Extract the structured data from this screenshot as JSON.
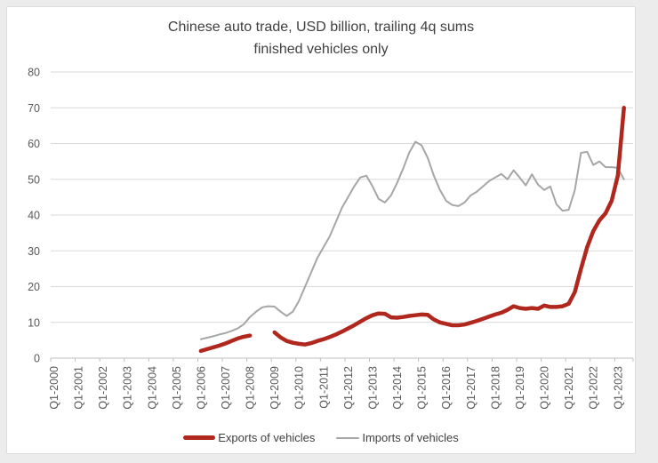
{
  "window": {
    "background_color": "#ececec",
    "panel_background": "#ffffff",
    "panel_border": "#dcdcdc"
  },
  "chart_data": {
    "type": "line",
    "title": "Chinese auto trade, USD billion, trailing 4q sums",
    "subtitle": "finished vehicles only",
    "xlabel": "",
    "ylabel": "",
    "ylim": [
      0,
      80
    ],
    "y_ticks": [
      0,
      10,
      20,
      30,
      40,
      50,
      60,
      70,
      80
    ],
    "grid": true,
    "grid_color": "#d9d9d9",
    "axis_color": "#bfbfbf",
    "tick_label_color": "#595959",
    "title_color": "#404040",
    "legend_position": "bottom",
    "x_axis_unit": "quarter",
    "axis_start_quarter": "Q1-2000",
    "axis_total_quarters": 95,
    "x_tick_labels": [
      "Q1-2000",
      "Q1-2001",
      "Q1-2002",
      "Q1-2003",
      "Q1-2004",
      "Q1-2005",
      "Q1-2006",
      "Q1-2007",
      "Q1-2008",
      "Q1-2009",
      "Q1-2010",
      "Q1-2011",
      "Q1-2012",
      "Q1-2013",
      "Q1-2014",
      "Q1-2015",
      "Q1-2016",
      "Q1-2017",
      "Q1-2018",
      "Q1-2019",
      "Q1-2020",
      "Q1-2021",
      "Q1-2022",
      "Q1-2023"
    ],
    "series": [
      {
        "name": "Exports of vehicles",
        "color": "#af271d",
        "stroke_width": 4.5,
        "start_quarter": "Q1-2006",
        "start_index": 24,
        "note": "null values = visible gap in line during 2008",
        "values": [
          2.0,
          2.5,
          3.0,
          3.5,
          4.1,
          4.8,
          5.5,
          6.0,
          6.3,
          null,
          null,
          null,
          7.2,
          5.8,
          4.8,
          4.3,
          4.0,
          3.8,
          4.2,
          4.8,
          5.3,
          5.9,
          6.6,
          7.4,
          8.3,
          9.2,
          10.2,
          11.2,
          12.0,
          12.5,
          12.4,
          11.4,
          11.3,
          11.5,
          11.8,
          12.0,
          12.2,
          12.1,
          10.8,
          10.0,
          9.6,
          9.2,
          9.2,
          9.4,
          9.9,
          10.4,
          11.0,
          11.6,
          12.2,
          12.7,
          13.5,
          14.5,
          14.0,
          13.8,
          14.0,
          13.8,
          14.7,
          14.3,
          14.3,
          14.5,
          15.2,
          18.5,
          25.0,
          31.0,
          35.5,
          38.5,
          40.5,
          44.0,
          51.0,
          70.0
        ]
      },
      {
        "name": "Imports of vehicles",
        "color": "#a6a6a6",
        "stroke_width": 2,
        "start_quarter": "Q1-2006",
        "start_index": 24,
        "values": [
          5.3,
          5.7,
          6.1,
          6.6,
          7.0,
          7.6,
          8.3,
          9.5,
          11.5,
          13.0,
          14.2,
          14.5,
          14.4,
          13.0,
          11.8,
          13.0,
          16.0,
          20.0,
          24.0,
          28.0,
          31.0,
          34.0,
          38.0,
          42.0,
          45.0,
          48.0,
          50.5,
          51.0,
          48.0,
          44.5,
          43.5,
          45.5,
          49.0,
          53.0,
          57.5,
          60.5,
          59.5,
          56.0,
          51.0,
          47.0,
          44.0,
          42.8,
          42.5,
          43.5,
          45.5,
          46.5,
          48.0,
          49.5,
          50.5,
          51.5,
          50.0,
          52.5,
          50.5,
          48.3,
          51.4,
          48.5,
          47.0,
          48.0,
          43.0,
          41.2,
          41.5,
          47.0,
          57.4,
          57.7,
          54.0,
          55.0,
          53.4,
          53.4,
          53.2,
          50.0
        ]
      }
    ]
  }
}
